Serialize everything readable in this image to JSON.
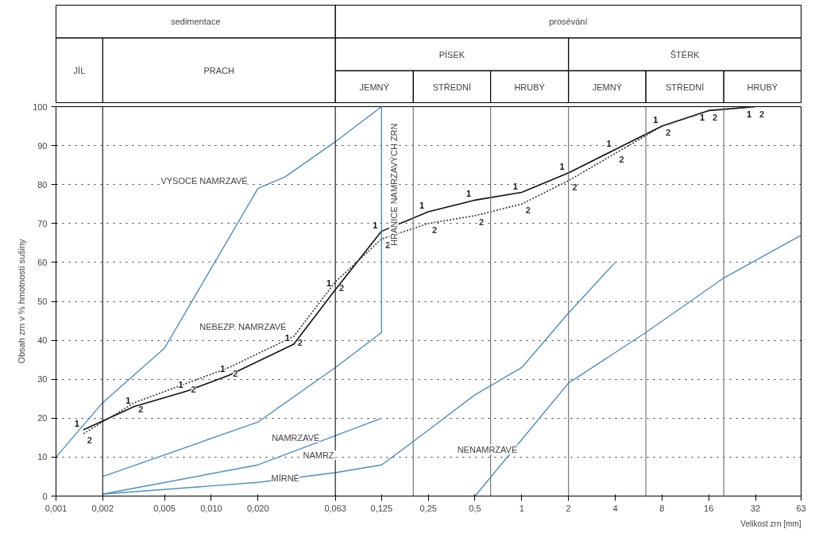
{
  "chart_data": [
    {
      "type": "other",
      "annotations": [
        "sedimentace",
        "prosévání",
        "JÍL",
        "PRACH",
        "PÍSEK",
        "ŠTĚRK",
        "JEMNÝ",
        "STŘEDNÍ",
        "HRUBÝ",
        "JEMNÝ",
        "STŘEDNÍ",
        "HRUBÝ"
      ]
    },
    {
      "type": "line",
      "xlabel": "Velikost zrn [mm]",
      "ylabel": "Obsah zrn v % hmotnosti sušiny",
      "log": "x",
      "xlim": [
        0.001,
        63
      ],
      "ylim": [
        0,
        100
      ],
      "xticks": [
        {
          "value": 0.001,
          "label": "0,001"
        },
        {
          "value": 0.002,
          "label": "0,002"
        },
        {
          "value": 0.005,
          "label": "0,005"
        },
        {
          "value": 0.01,
          "label": "0,010"
        },
        {
          "value": 0.02,
          "label": "0,020"
        },
        {
          "value": 0.063,
          "label": "0,063"
        },
        {
          "value": 0.125,
          "label": "0,125"
        },
        {
          "value": 0.25,
          "label": "0,25"
        },
        {
          "value": 0.5,
          "label": "0,5"
        },
        1,
        2,
        4,
        8,
        16,
        32,
        63
      ],
      "yticks": [
        0,
        10,
        20,
        30,
        40,
        50,
        60,
        70,
        80,
        90,
        100
      ],
      "grid": "y",
      "series": [
        {
          "name": "1",
          "color": "#111111",
          "line_style": "solid",
          "x": [
            0.0015,
            0.0032,
            0.007,
            0.013,
            0.034,
            0.063,
            0.125,
            0.25,
            0.5,
            1,
            2,
            4,
            8,
            16,
            32
          ],
          "values": [
            17,
            23,
            27,
            31,
            39,
            53,
            68,
            73,
            76,
            78,
            83,
            89,
            95,
            99,
            100
          ]
        },
        {
          "name": "2",
          "color": "#333333",
          "line_style": "dotted",
          "x": [
            0.0015,
            0.0032,
            0.007,
            0.013,
            0.034,
            0.063,
            0.125,
            0.25,
            0.5,
            1,
            2,
            4,
            8,
            16,
            32
          ],
          "values": [
            16,
            24,
            29,
            33,
            41,
            55,
            66,
            70,
            72,
            75,
            81,
            88,
            95,
            99,
            100
          ]
        },
        {
          "color": "#4a8fc4",
          "x": [
            0.001,
            0.002,
            0.005,
            0.02,
            0.03,
            0.063,
            0.125,
            0.125,
            0.063,
            0.02,
            0.002
          ],
          "values": [
            10,
            24,
            38,
            79,
            82,
            91,
            100,
            42,
            33,
            19,
            5
          ]
        },
        {
          "color": "#4a8fc4",
          "x": [
            0.002,
            0.02,
            0.125
          ],
          "values": [
            0.5,
            8,
            20
          ]
        },
        {
          "color": "#4a8fc4",
          "x": [
            0.002,
            0.02,
            0.063,
            0.125,
            0.2,
            0.5,
            1,
            2,
            4
          ],
          "values": [
            0.5,
            3.5,
            6,
            8,
            14,
            26,
            33,
            47,
            60
          ]
        },
        {
          "color": "#4a8fc4",
          "x": [
            0.5,
            2,
            6.3,
            20,
            63
          ],
          "values": [
            0,
            29,
            42,
            56,
            67
          ]
        }
      ],
      "ref_lines": [
        {
          "axis": "x",
          "value": 0.002,
          "color": "#222222"
        },
        {
          "axis": "x",
          "value": 0.063,
          "color": "#222222"
        },
        {
          "axis": "x",
          "value": 0.2,
          "color": "#777777"
        },
        {
          "axis": "x",
          "value": 0.63,
          "color": "#777777"
        },
        {
          "axis": "x",
          "value": 2,
          "color": "#777777"
        },
        {
          "axis": "x",
          "value": 6.3,
          "color": "#777777"
        },
        {
          "axis": "x",
          "value": 20,
          "color": "#777777"
        }
      ],
      "annotations": [
        "VYSOCE NAMRZAVÉ",
        "NEBEZP. NAMRZAVÉ",
        "NAMRZAVÉ",
        "NAMRZ.",
        "MÍRNÉ",
        "NENAMRZAVÉ",
        "HRANICE NAMRZAVÝCH ZRN"
      ]
    }
  ]
}
